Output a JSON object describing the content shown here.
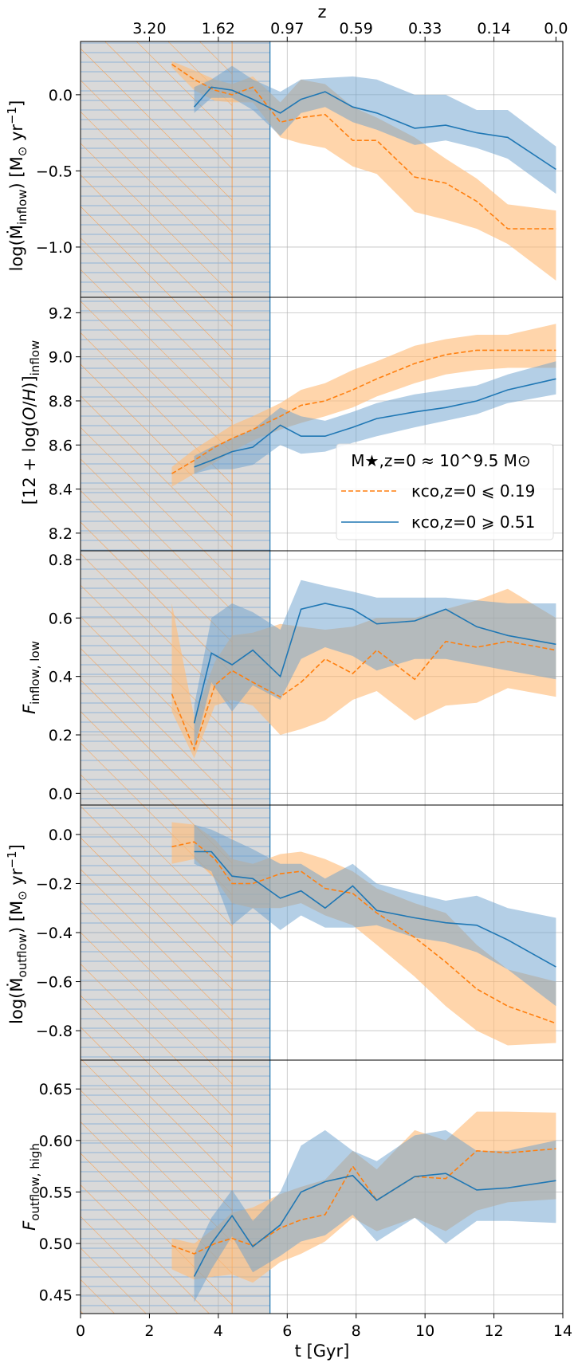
{
  "colors": {
    "series_low": "#ff7f0e",
    "series_high": "#1f77b4",
    "band_low": "#ffbb78",
    "band_high": "#6a9fcd",
    "shade": "#d9d9d9",
    "hatch_orange": "#f5a256",
    "hatch_blue": "#8fb3d8",
    "grid": "#b0b0b0"
  },
  "chart_data": [
    {
      "type": "line",
      "panel": "mdot-inflow",
      "ylabel": "log(Ṁ_inflow) [M⊙ yr⁻¹]",
      "ylim": [
        -1.33,
        0.35
      ],
      "yticks": [
        0.0,
        -0.5,
        -1.0
      ],
      "ytick_labels": [
        "0.0",
        "−0.5",
        "−1.0"
      ],
      "series": [
        {
          "name": "low",
          "style": "dashed",
          "x": [
            2.65,
            3.3,
            3.9,
            4.4,
            5.0,
            5.8,
            6.4,
            7.1,
            7.9,
            8.6,
            9.7,
            10.6,
            11.5,
            12.4,
            13.8
          ],
          "y": [
            0.2,
            0.1,
            0.03,
            0.0,
            0.05,
            -0.18,
            -0.15,
            -0.13,
            -0.3,
            -0.3,
            -0.54,
            -0.58,
            -0.7,
            -0.88,
            -0.88
          ],
          "lo": [
            0.18,
            0.03,
            -0.04,
            -0.05,
            -0.05,
            -0.28,
            -0.32,
            -0.35,
            -0.47,
            -0.52,
            -0.77,
            -0.82,
            -0.88,
            -0.98,
            -1.22
          ],
          "hi": [
            0.22,
            0.16,
            0.1,
            0.07,
            0.12,
            -0.05,
            0.1,
            0.07,
            -0.08,
            -0.15,
            -0.28,
            -0.42,
            -0.55,
            -0.72,
            -0.76
          ]
        },
        {
          "name": "high",
          "style": "solid",
          "x": [
            3.3,
            3.8,
            4.4,
            5.0,
            5.8,
            6.4,
            7.1,
            7.9,
            8.6,
            9.7,
            10.6,
            11.5,
            12.4,
            13.8
          ],
          "y": [
            -0.08,
            0.05,
            0.03,
            -0.03,
            -0.12,
            -0.03,
            0.02,
            -0.08,
            -0.12,
            -0.22,
            -0.2,
            -0.25,
            -0.28,
            -0.49
          ],
          "lo": [
            -0.12,
            -0.02,
            -0.02,
            -0.1,
            -0.27,
            -0.12,
            -0.08,
            -0.18,
            -0.23,
            -0.33,
            -0.3,
            -0.35,
            -0.42,
            -0.65
          ],
          "hi": [
            0.05,
            0.1,
            0.19,
            0.1,
            0.02,
            0.1,
            0.11,
            0.12,
            0.1,
            0.0,
            0.0,
            -0.1,
            -0.1,
            -0.34
          ]
        }
      ]
    },
    {
      "type": "line",
      "panel": "metallicity-inflow",
      "ylabel": "[12 + log(O/H)]_inflow",
      "ylim": [
        8.12,
        9.27
      ],
      "yticks": [
        9.2,
        9.0,
        8.8,
        8.6,
        8.4,
        8.2
      ],
      "ytick_labels": [
        "9.2",
        "9.0",
        "8.8",
        "8.6",
        "8.4",
        "8.2"
      ],
      "legend": {
        "title": "M★,z=0 ≈ 10^9.5 M⊙",
        "entries": [
          "κco,z=0 ⩽ 0.19",
          "κco,z=0 ⩾ 0.51"
        ],
        "location": "center-right"
      },
      "series": [
        {
          "name": "κco,z=0 ⩽ 0.19",
          "style": "dashed",
          "x": [
            2.65,
            3.3,
            3.9,
            4.4,
            5.0,
            5.8,
            6.4,
            7.1,
            7.9,
            8.6,
            9.7,
            10.6,
            11.5,
            12.4,
            13.8
          ],
          "y": [
            8.47,
            8.53,
            8.59,
            8.63,
            8.67,
            8.73,
            8.78,
            8.8,
            8.85,
            8.9,
            8.97,
            9.01,
            9.03,
            9.03,
            9.03
          ],
          "lo": [
            8.41,
            8.47,
            8.52,
            8.57,
            8.62,
            8.67,
            8.7,
            8.73,
            8.77,
            8.82,
            8.88,
            8.92,
            8.94,
            8.95,
            8.95
          ],
          "hi": [
            8.5,
            8.58,
            8.64,
            8.69,
            8.73,
            8.79,
            8.85,
            8.88,
            8.94,
            8.98,
            9.05,
            9.08,
            9.1,
            9.1,
            9.15
          ]
        },
        {
          "name": "κco,z=0 ⩾ 0.51",
          "style": "solid",
          "x": [
            3.3,
            3.8,
            4.4,
            5.0,
            5.8,
            6.4,
            7.1,
            7.9,
            8.6,
            9.7,
            10.6,
            11.5,
            12.4,
            13.8
          ],
          "y": [
            8.5,
            8.53,
            8.57,
            8.59,
            8.69,
            8.64,
            8.64,
            8.68,
            8.72,
            8.75,
            8.77,
            8.8,
            8.85,
            8.9
          ],
          "lo": [
            8.47,
            8.49,
            8.49,
            8.51,
            8.6,
            8.56,
            8.57,
            8.61,
            8.64,
            8.68,
            8.71,
            8.74,
            8.79,
            8.83
          ],
          "hi": [
            8.55,
            8.59,
            8.63,
            8.67,
            8.77,
            8.73,
            8.71,
            8.75,
            8.79,
            8.83,
            8.85,
            8.87,
            8.92,
            8.98
          ]
        }
      ]
    },
    {
      "type": "line",
      "panel": "f-inflow-low",
      "ylabel": "F_inflow, low",
      "ylim": [
        -0.04,
        0.83
      ],
      "yticks": [
        0.8,
        0.6,
        0.4,
        0.2,
        0.0
      ],
      "ytick_labels": [
        "0.8",
        "0.6",
        "0.4",
        "0.2",
        "0.0"
      ],
      "series": [
        {
          "name": "low",
          "style": "dashed",
          "x": [
            2.65,
            3.3,
            3.9,
            4.4,
            5.0,
            5.8,
            6.4,
            7.1,
            7.9,
            8.6,
            9.7,
            10.6,
            11.5,
            12.4,
            13.8
          ],
          "y": [
            0.34,
            0.15,
            0.37,
            0.42,
            0.38,
            0.33,
            0.38,
            0.46,
            0.41,
            0.49,
            0.39,
            0.52,
            0.5,
            0.52,
            0.49
          ],
          "lo": [
            0.28,
            0.12,
            0.3,
            0.32,
            0.3,
            0.2,
            0.22,
            0.25,
            0.32,
            0.35,
            0.25,
            0.3,
            0.31,
            0.36,
            0.33
          ],
          "hi": [
            0.65,
            0.26,
            0.45,
            0.54,
            0.55,
            0.58,
            0.57,
            0.56,
            0.57,
            0.6,
            0.6,
            0.63,
            0.66,
            0.7,
            0.6
          ]
        },
        {
          "name": "high",
          "style": "solid",
          "x": [
            3.3,
            3.8,
            4.4,
            5.0,
            5.8,
            6.4,
            7.1,
            7.9,
            8.6,
            9.7,
            10.6,
            11.5,
            12.4,
            13.8
          ],
          "y": [
            0.24,
            0.48,
            0.44,
            0.49,
            0.4,
            0.63,
            0.65,
            0.63,
            0.58,
            0.59,
            0.63,
            0.57,
            0.54,
            0.51
          ],
          "lo": [
            0.15,
            0.38,
            0.28,
            0.37,
            0.32,
            0.46,
            0.5,
            0.47,
            0.42,
            0.46,
            0.46,
            0.44,
            0.42,
            0.39
          ],
          "hi": [
            0.3,
            0.6,
            0.65,
            0.62,
            0.56,
            0.73,
            0.71,
            0.69,
            0.67,
            0.67,
            0.67,
            0.66,
            0.65,
            0.65
          ]
        }
      ]
    },
    {
      "type": "line",
      "panel": "mdot-outflow",
      "ylabel": "log(Ṁ_outflow) [M⊙ yr⁻¹]",
      "ylim": [
        -0.92,
        0.12
      ],
      "yticks": [
        0.0,
        -0.2,
        -0.4,
        -0.6,
        -0.8
      ],
      "ytick_labels": [
        "0.0",
        "−0.2",
        "−0.4",
        "−0.6",
        "−0.8"
      ],
      "series": [
        {
          "name": "low",
          "style": "dashed",
          "x": [
            2.65,
            3.3,
            3.9,
            4.4,
            5.0,
            5.8,
            6.4,
            7.1,
            7.9,
            8.6,
            9.7,
            10.6,
            11.5,
            12.4,
            13.8
          ],
          "y": [
            -0.05,
            -0.03,
            -0.1,
            -0.2,
            -0.2,
            -0.16,
            -0.15,
            -0.22,
            -0.24,
            -0.32,
            -0.42,
            -0.52,
            -0.63,
            -0.7,
            -0.77
          ],
          "lo": [
            -0.12,
            -0.1,
            -0.18,
            -0.28,
            -0.3,
            -0.3,
            -0.28,
            -0.33,
            -0.37,
            -0.45,
            -0.58,
            -0.7,
            -0.8,
            -0.86,
            -0.85
          ],
          "hi": [
            0.05,
            0.04,
            -0.02,
            -0.1,
            -0.12,
            -0.08,
            -0.07,
            -0.1,
            -0.15,
            -0.22,
            -0.28,
            -0.32,
            -0.45,
            -0.55,
            -0.6
          ]
        },
        {
          "name": "high",
          "style": "solid",
          "x": [
            3.3,
            3.8,
            4.4,
            5.0,
            5.8,
            6.4,
            7.1,
            7.9,
            8.6,
            9.7,
            10.6,
            11.5,
            12.4,
            13.8
          ],
          "y": [
            -0.07,
            -0.07,
            -0.17,
            -0.18,
            -0.26,
            -0.23,
            -0.3,
            -0.21,
            -0.31,
            -0.34,
            -0.36,
            -0.37,
            -0.43,
            -0.54
          ],
          "lo": [
            -0.12,
            -0.15,
            -0.37,
            -0.3,
            -0.39,
            -0.33,
            -0.38,
            -0.38,
            -0.37,
            -0.42,
            -0.44,
            -0.48,
            -0.55,
            -0.7
          ],
          "hi": [
            0.04,
            0.02,
            -0.02,
            -0.06,
            -0.12,
            -0.12,
            -0.18,
            -0.12,
            -0.2,
            -0.24,
            -0.27,
            -0.25,
            -0.3,
            -0.34
          ]
        }
      ]
    },
    {
      "type": "line",
      "panel": "f-outflow-high",
      "ylabel": "F_outflow, high",
      "xlabel": "t [Gyr]",
      "xlim": [
        0,
        14
      ],
      "xticks": [
        0,
        2,
        4,
        6,
        8,
        10,
        12,
        14
      ],
      "ylim": [
        0.432,
        0.678
      ],
      "yticks": [
        0.65,
        0.6,
        0.55,
        0.5,
        0.45
      ],
      "ytick_labels": [
        "0.65",
        "0.60",
        "0.55",
        "0.50",
        "0.45"
      ],
      "series": [
        {
          "name": "low",
          "style": "dashed",
          "x": [
            2.65,
            3.3,
            3.9,
            4.4,
            5.0,
            5.8,
            6.4,
            7.1,
            7.9,
            8.6,
            9.7,
            10.6,
            11.5,
            12.4,
            13.8
          ],
          "y": [
            0.498,
            0.49,
            0.5,
            0.505,
            0.498,
            0.515,
            0.523,
            0.528,
            0.575,
            0.542,
            0.565,
            0.563,
            0.59,
            0.588,
            0.592
          ],
          "lo": [
            0.475,
            0.465,
            0.468,
            0.47,
            0.462,
            0.482,
            0.49,
            0.502,
            0.525,
            0.512,
            0.525,
            0.512,
            0.532,
            0.54,
            0.543
          ],
          "hi": [
            0.505,
            0.5,
            0.515,
            0.53,
            0.535,
            0.548,
            0.555,
            0.562,
            0.59,
            0.572,
            0.61,
            0.6,
            0.628,
            0.628,
            0.627
          ]
        },
        {
          "name": "high",
          "style": "solid",
          "x": [
            3.3,
            3.8,
            4.4,
            5.0,
            5.8,
            6.4,
            7.1,
            7.9,
            8.6,
            9.7,
            10.6,
            11.5,
            12.4,
            13.8
          ],
          "y": [
            0.468,
            0.5,
            0.527,
            0.497,
            0.518,
            0.55,
            0.56,
            0.566,
            0.542,
            0.565,
            0.568,
            0.552,
            0.554,
            0.561
          ],
          "lo": [
            0.443,
            0.475,
            0.507,
            0.472,
            0.488,
            0.502,
            0.508,
            0.528,
            0.502,
            0.525,
            0.5,
            0.522,
            0.522,
            0.52
          ],
          "hi": [
            0.49,
            0.525,
            0.552,
            0.522,
            0.55,
            0.595,
            0.61,
            0.59,
            0.58,
            0.605,
            0.61,
            0.59,
            0.59,
            0.6
          ]
        }
      ]
    }
  ],
  "x_axis": {
    "label": "t [Gyr]",
    "tick_labels": [
      "0",
      "2",
      "4",
      "6",
      "8",
      "10",
      "12",
      "14"
    ],
    "values": [
      0,
      2,
      4,
      6,
      8,
      10,
      12,
      14
    ]
  },
  "top_axis": {
    "label": "z",
    "tick_labels": [
      "3.20",
      "1.62",
      "0.97",
      "0.59",
      "0.33",
      "0.14",
      "0.0"
    ],
    "t_positions": [
      2.0,
      4.0,
      6.0,
      8.0,
      10.0,
      12.0,
      13.8
    ]
  },
  "shaded_region": {
    "t_start": 0,
    "t_end": 5.5
  },
  "vertical_marker_t": 4.4
}
